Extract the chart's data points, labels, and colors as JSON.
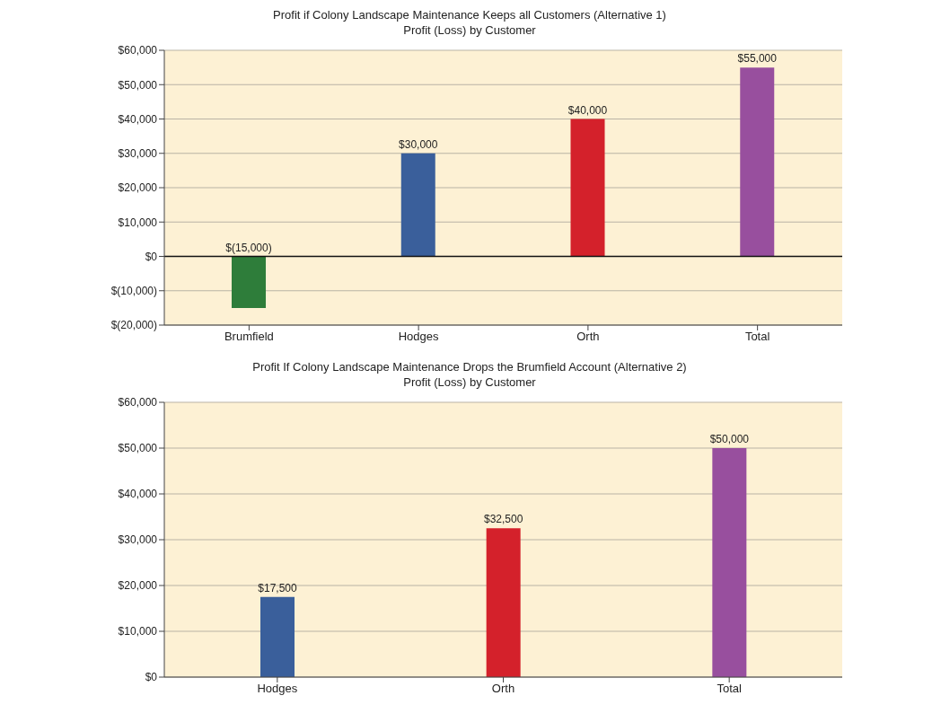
{
  "chart_data": [
    {
      "type": "bar",
      "title": "Profit if Colony Landscape Maintenance Keeps all Customers (Alternative 1)",
      "subtitle": "Profit (Loss) by Customer",
      "categories": [
        "Brumfield",
        "Hodges",
        "Orth",
        "Total"
      ],
      "values": [
        -15000,
        30000,
        40000,
        55000
      ],
      "colors": [
        "#2e7d3a",
        "#3a5f9b",
        "#d4212b",
        "#984f9e"
      ],
      "value_labels": [
        "$(15,000)",
        "$30,000",
        "$40,000",
        "$55,000"
      ],
      "ylim": [
        -20000,
        60000
      ],
      "yticks": [
        {
          "value": -20000,
          "label": "$(20,000)"
        },
        {
          "value": -10000,
          "label": "$(10,000)"
        },
        {
          "value": 0,
          "label": "$0"
        },
        {
          "value": 10000,
          "label": "$10,000"
        },
        {
          "value": 20000,
          "label": "$20,000"
        },
        {
          "value": 30000,
          "label": "$30,000"
        },
        {
          "value": 40000,
          "label": "$40,000"
        },
        {
          "value": 50000,
          "label": "$50,000"
        },
        {
          "value": 60000,
          "label": "$60,000"
        }
      ],
      "grid": "y"
    },
    {
      "type": "bar",
      "title": "Profit If Colony Landscape Maintenance Drops the Brumfield Account (Alternative 2)",
      "subtitle": "Profit (Loss) by Customer",
      "categories": [
        "Hodges",
        "Orth",
        "Total"
      ],
      "values": [
        17500,
        32500,
        50000
      ],
      "colors": [
        "#3a5f9b",
        "#d4212b",
        "#984f9e"
      ],
      "value_labels": [
        "$17,500",
        "$32,500",
        "$50,000"
      ],
      "ylim": [
        0,
        60000
      ],
      "yticks": [
        {
          "value": 0,
          "label": "$0"
        },
        {
          "value": 10000,
          "label": "$10,000"
        },
        {
          "value": 20000,
          "label": "$20,000"
        },
        {
          "value": 30000,
          "label": "$30,000"
        },
        {
          "value": 40000,
          "label": "$40,000"
        },
        {
          "value": 50000,
          "label": "$50,000"
        },
        {
          "value": 60000,
          "label": "$60,000"
        }
      ],
      "grid": "y"
    }
  ]
}
